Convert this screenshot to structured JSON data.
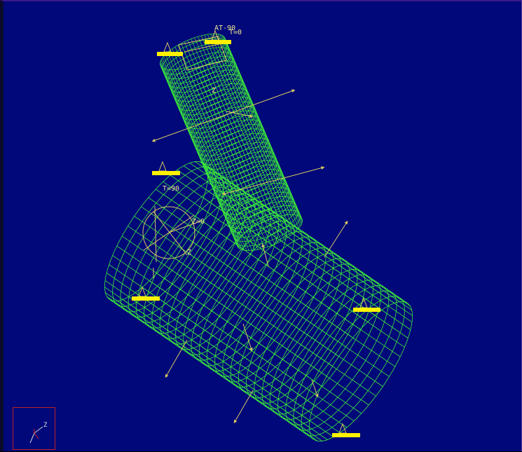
{
  "labels": {
    "top_at": "AT-90",
    "top_t": "T=0",
    "top_axis": "Z",
    "left_t": "T=90",
    "left_z": "Z=0",
    "left_axis": "Z"
  },
  "triad": {
    "axis_z": "Z"
  },
  "colors": {
    "background": "#00087a",
    "mesh": "#3bea3b",
    "annotation": "#d8c860",
    "marker": "#fff200",
    "triad_border": "#c02020"
  },
  "icons": [
    "view-triad-icon",
    "boundary-marker-icon",
    "force-arrow-icon"
  ]
}
